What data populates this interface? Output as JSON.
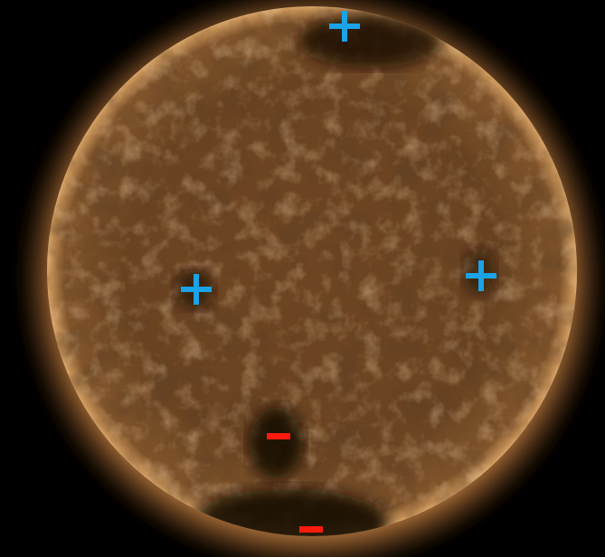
{
  "image": {
    "subject": "sun-disk",
    "colors": {
      "background": "#000000",
      "disk_base": "#6b4523",
      "corona_glow": "#b8783d",
      "limb_highlight": "#e0b47a",
      "coronal_hole": "#140b05",
      "plus_marker": "#1aa3e6",
      "minus_marker": "#ff1a0d"
    }
  },
  "markers": [
    {
      "kind": "plus",
      "icon": "plus-icon"
    },
    {
      "kind": "plus",
      "icon": "plus-icon"
    },
    {
      "kind": "plus",
      "icon": "plus-icon"
    },
    {
      "kind": "minus",
      "icon": "minus-icon"
    },
    {
      "kind": "minus",
      "icon": "minus-icon"
    }
  ]
}
